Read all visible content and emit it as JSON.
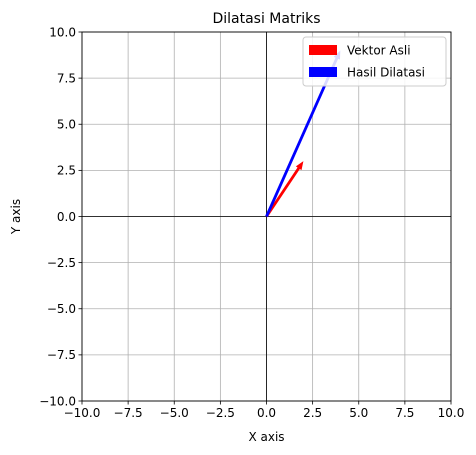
{
  "chart_data": {
    "type": "quiver",
    "title": "Dilatasi Matriks",
    "xlabel": "X axis",
    "ylabel": "Y axis",
    "xlim": [
      -10,
      10
    ],
    "ylim": [
      -10,
      10
    ],
    "grid": true,
    "axis_lines_at_zero": true,
    "legend_position": "top-right",
    "x_ticks": [
      "−10.0",
      "−7.5",
      "−5.0",
      "−2.5",
      "0.0",
      "2.5",
      "5.0",
      "7.5",
      "10.0"
    ],
    "y_ticks": [
      "−10.0",
      "−7.5",
      "−5.0",
      "−2.5",
      "0.0",
      "2.5",
      "5.0",
      "7.5",
      "10.0"
    ],
    "x_tick_values": [
      -10,
      -7.5,
      -5,
      -2.5,
      0,
      2.5,
      5,
      7.5,
      10
    ],
    "y_tick_values": [
      -10,
      -7.5,
      -5,
      -2.5,
      0,
      2.5,
      5,
      7.5,
      10
    ],
    "series": [
      {
        "name": "Vektor Asli",
        "color": "#ff0000",
        "origin": [
          0,
          0
        ],
        "vector": [
          2,
          3
        ]
      },
      {
        "name": "Hasil Dilatasi",
        "color": "#0000ff",
        "origin": [
          0,
          0
        ],
        "vector": [
          4,
          9
        ]
      }
    ]
  }
}
